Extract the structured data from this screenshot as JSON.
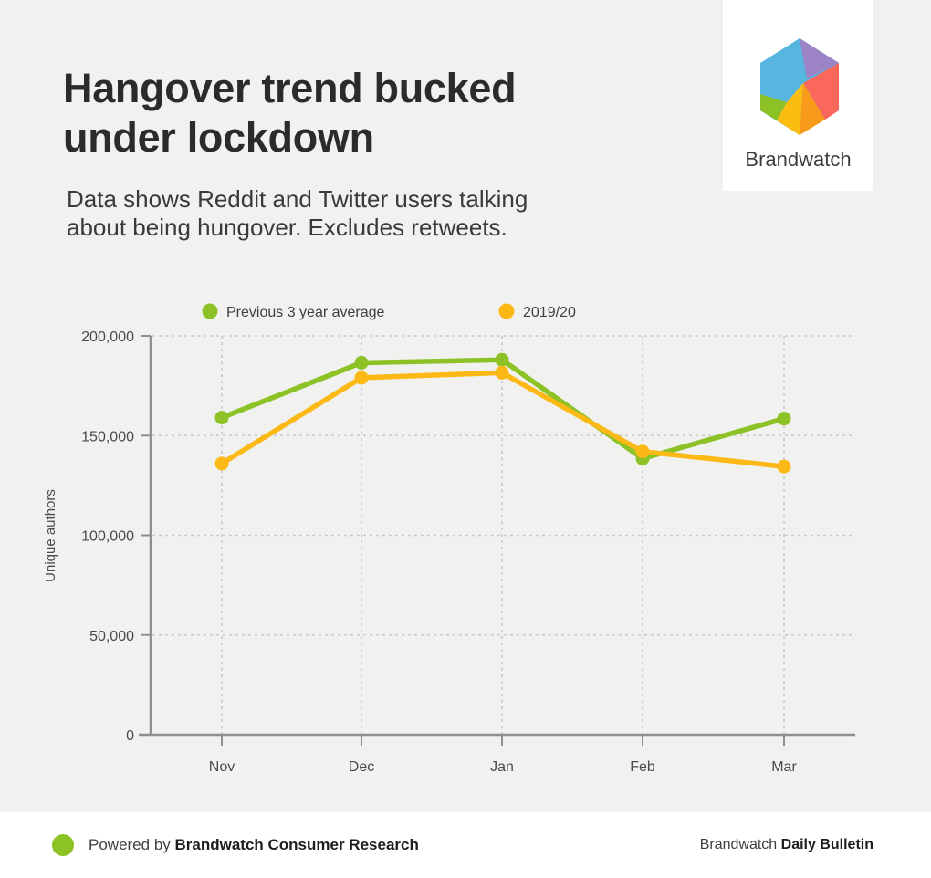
{
  "header": {
    "title_line1": "Hangover trend bucked",
    "title_line2": "under lockdown",
    "subtitle_line1": "Data shows Reddit and Twitter users talking",
    "subtitle_line2": "about being hungover. Excludes retweets.",
    "brand_name": "Brandwatch"
  },
  "chart_data": {
    "type": "line",
    "categories": [
      "Nov",
      "Dec",
      "Jan",
      "Feb",
      "Mar"
    ],
    "series": [
      {
        "name": "Previous 3 year average",
        "color": "#8CC226",
        "values": [
          159000,
          186500,
          188000,
          138500,
          158500
        ]
      },
      {
        "name": "2019/20",
        "color": "#FCB916",
        "values": [
          136000,
          179000,
          181500,
          142000,
          134500
        ]
      }
    ],
    "title": "",
    "xlabel": "",
    "ylabel": "Unique authors",
    "ylim": [
      0,
      200000
    ],
    "yticks": [
      0,
      50000,
      100000,
      150000,
      200000
    ],
    "ytick_labels": [
      "0",
      "50,000",
      "100,000",
      "150,000",
      "200,000"
    ],
    "grid": "dashed",
    "legend_position": "top"
  },
  "logo": {
    "colors": {
      "blue": "#56B6DF",
      "purple": "#9C83C5",
      "coral": "#F9685B",
      "orange": "#F89B1B",
      "yellow": "#FCBC10",
      "green": "#8CC226"
    }
  },
  "footer": {
    "powered_by_prefix": "Powered by ",
    "powered_by_brand": "Brandwatch Consumer Research",
    "right_prefix": "Brandwatch ",
    "right_bold": "Daily Bulletin",
    "dot_color": "#8CC226"
  }
}
